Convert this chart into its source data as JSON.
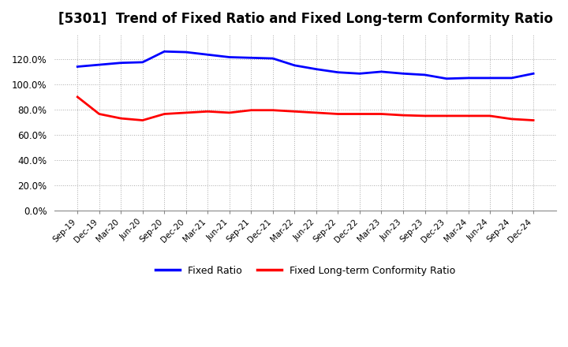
{
  "title": "[5301]  Trend of Fixed Ratio and Fixed Long-term Conformity Ratio",
  "x_labels": [
    "Sep-19",
    "Dec-19",
    "Mar-20",
    "Jun-20",
    "Sep-20",
    "Dec-20",
    "Mar-21",
    "Jun-21",
    "Sep-21",
    "Dec-21",
    "Mar-22",
    "Jun-22",
    "Sep-22",
    "Dec-22",
    "Mar-23",
    "Jun-23",
    "Sep-23",
    "Dec-23",
    "Mar-24",
    "Jun-24",
    "Sep-24",
    "Dec-24"
  ],
  "fixed_ratio": [
    114.0,
    115.5,
    117.0,
    117.5,
    126.0,
    125.5,
    123.5,
    121.5,
    121.0,
    120.5,
    115.0,
    112.0,
    109.5,
    108.5,
    110.0,
    108.5,
    107.5,
    104.5,
    105.0,
    105.0,
    105.0,
    108.5
  ],
  "fixed_lt_ratio": [
    90.0,
    76.5,
    73.0,
    71.5,
    76.5,
    77.5,
    78.5,
    77.5,
    79.5,
    79.5,
    78.5,
    77.5,
    76.5,
    76.5,
    76.5,
    75.5,
    75.0,
    75.0,
    75.0,
    75.0,
    72.5,
    71.5
  ],
  "fixed_ratio_color": "#0000FF",
  "fixed_lt_ratio_color": "#FF0000",
  "ylim": [
    0,
    140
  ],
  "yticks": [
    0,
    20,
    40,
    60,
    80,
    100,
    120
  ],
  "background_color": "#FFFFFF",
  "grid_color": "#AAAAAA",
  "title_fontsize": 12,
  "legend_labels": [
    "Fixed Ratio",
    "Fixed Long-term Conformity Ratio"
  ]
}
